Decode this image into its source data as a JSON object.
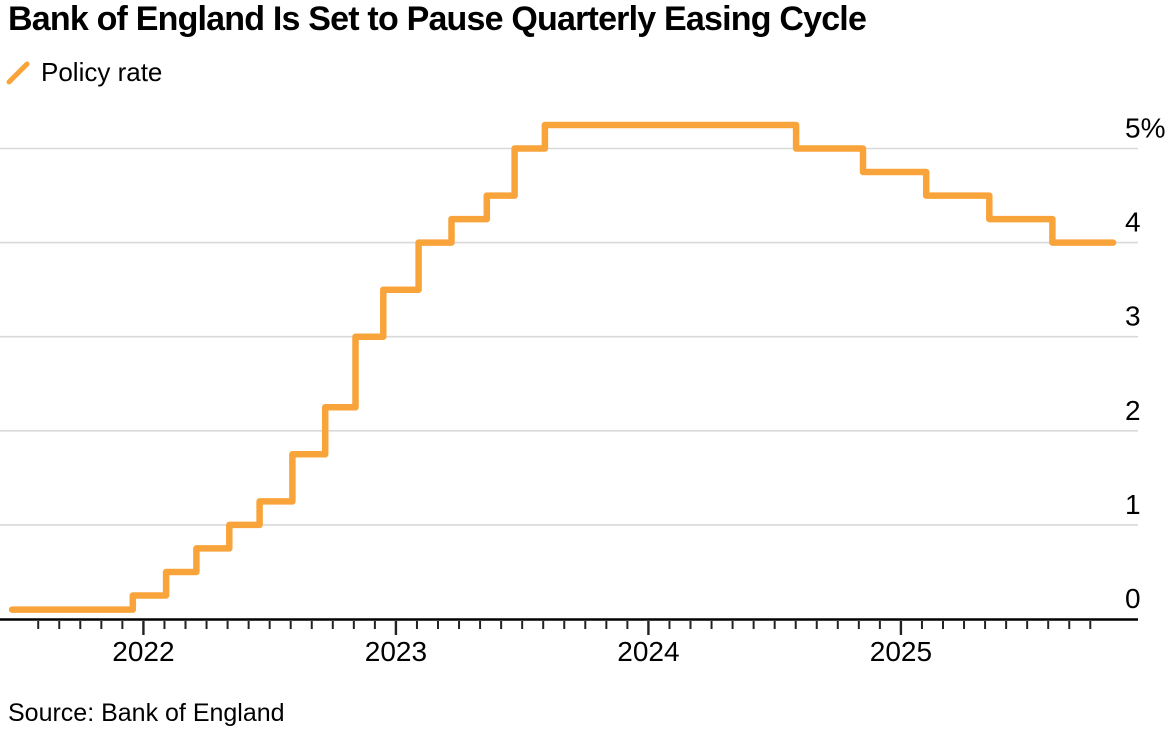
{
  "header": {
    "title": "Bank of England Is Set to Pause Quarterly Easing Cycle"
  },
  "legend": {
    "label": "Policy rate"
  },
  "source": {
    "text": "Source: Bank of England"
  },
  "colors": {
    "line": "#F9A43B",
    "grid": "#D9D9D9",
    "axis": "#000000",
    "text": "#000000"
  },
  "chart_data": {
    "type": "line",
    "line_style": "step-after",
    "title": "Bank of England Is Set to Pause Quarterly Easing Cycle",
    "legend_entries": [
      "Policy rate"
    ],
    "unit": "%",
    "axis_side": "right",
    "grid": "horizontal",
    "xlim": [
      2021.432,
      2025.938
    ],
    "ylim": [
      0,
      5.5
    ],
    "x_ticks": [
      {
        "t": 2022,
        "label": "2022"
      },
      {
        "t": 2023,
        "label": "2023"
      },
      {
        "t": 2024,
        "label": "2024"
      },
      {
        "t": 2025,
        "label": "2025"
      }
    ],
    "minor_x_ticks": "monthly",
    "minor_x_tick_range": [
      2021.583,
      2025.79
    ],
    "y_ticks": [
      {
        "v": 0,
        "label": "0"
      },
      {
        "v": 1,
        "label": "1"
      },
      {
        "v": 2,
        "label": "2"
      },
      {
        "v": 3,
        "label": "3"
      },
      {
        "v": 4,
        "label": "4"
      },
      {
        "v": 5,
        "label": "5%"
      }
    ],
    "series": [
      {
        "name": "Policy rate",
        "color_key": "line",
        "points": [
          {
            "t": 2021.48,
            "date": "2021-06",
            "rate": 0.1
          },
          {
            "t": 2021.958,
            "date": "2021-12",
            "rate": 0.25
          },
          {
            "t": 2022.09,
            "date": "2022-02",
            "rate": 0.5
          },
          {
            "t": 2022.21,
            "date": "2022-03",
            "rate": 0.75
          },
          {
            "t": 2022.34,
            "date": "2022-05",
            "rate": 1.0
          },
          {
            "t": 2022.46,
            "date": "2022-06",
            "rate": 1.25
          },
          {
            "t": 2022.59,
            "date": "2022-08",
            "rate": 1.75
          },
          {
            "t": 2022.72,
            "date": "2022-09",
            "rate": 2.25
          },
          {
            "t": 2022.84,
            "date": "2022-11",
            "rate": 3.0
          },
          {
            "t": 2022.95,
            "date": "2022-12",
            "rate": 3.5
          },
          {
            "t": 2023.09,
            "date": "2023-02",
            "rate": 4.0
          },
          {
            "t": 2023.22,
            "date": "2023-03",
            "rate": 4.25
          },
          {
            "t": 2023.36,
            "date": "2023-05",
            "rate": 4.5
          },
          {
            "t": 2023.47,
            "date": "2023-06",
            "rate": 5.0
          },
          {
            "t": 2023.59,
            "date": "2023-08",
            "rate": 5.25
          },
          {
            "t": 2024.585,
            "date": "2024-08",
            "rate": 5.0
          },
          {
            "t": 2024.85,
            "date": "2024-11",
            "rate": 4.75
          },
          {
            "t": 2025.1,
            "date": "2025-02",
            "rate": 4.5
          },
          {
            "t": 2025.35,
            "date": "2025-05",
            "rate": 4.25
          },
          {
            "t": 2025.6,
            "date": "2025-08",
            "rate": 4.0
          },
          {
            "t": 2025.84,
            "date": "2025-11",
            "rate": 4.0
          }
        ]
      }
    ]
  }
}
